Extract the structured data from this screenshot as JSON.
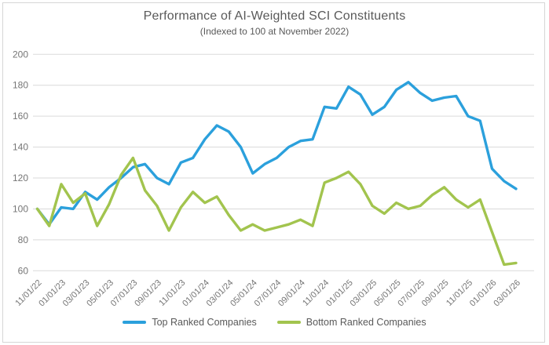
{
  "chart": {
    "title": "Performance of AI-Weighted SCI Constituents",
    "subtitle": "(Indexed to 100 at November 2022)"
  },
  "chart_data": {
    "type": "line",
    "title": "Performance of AI-Weighted SCI Constituents",
    "subtitle": "(Indexed to 100 at November 2022)",
    "x_frequency": "monthly",
    "x_start": "11/01/22",
    "x_end": "03/01/26",
    "x_tick_labels": [
      "11/01/22",
      "01/01/23",
      "03/01/23",
      "05/01/23",
      "07/01/23",
      "09/01/23",
      "11/01/23",
      "01/01/24",
      "03/01/24",
      "05/01/24",
      "07/01/24",
      "09/01/24",
      "11/01/24",
      "01/01/25",
      "03/01/25",
      "05/01/25",
      "07/01/25",
      "09/01/25",
      "11/01/25",
      "01/01/26",
      "03/01/26"
    ],
    "points_per_tick": 2,
    "series": [
      {
        "name": "Top Ranked Companies",
        "color": "#2BA0DC",
        "values": [
          100,
          90,
          101,
          100,
          111,
          106,
          114,
          120,
          127,
          129,
          120,
          116,
          130,
          133,
          145,
          154,
          150,
          140,
          123,
          129,
          133,
          140,
          144,
          145,
          166,
          165,
          179,
          174,
          161,
          166,
          177,
          182,
          175,
          170,
          172,
          173,
          160,
          157,
          126,
          118,
          113
        ]
      },
      {
        "name": "Bottom Ranked Companies",
        "color": "#A2C44E",
        "values": [
          100,
          89,
          116,
          104,
          110,
          89,
          103,
          122,
          133,
          112,
          102,
          86,
          101,
          111,
          104,
          108,
          96,
          86,
          90,
          86,
          88,
          90,
          93,
          89,
          117,
          120,
          124,
          116,
          102,
          97,
          104,
          100,
          102,
          109,
          114,
          106,
          101,
          106,
          85,
          64,
          65
        ]
      }
    ],
    "ylim": [
      60,
      200
    ],
    "yticks": [
      200,
      180,
      160,
      140,
      120,
      100,
      80,
      60
    ],
    "grid": "horizontal-only",
    "gridline_color": "#DADADA",
    "axis_text_color": "#757575",
    "legend_position": "bottom"
  },
  "colors": {
    "background": "#FFFFFF",
    "border": "#D6D6D6",
    "title_text": "#595959"
  }
}
